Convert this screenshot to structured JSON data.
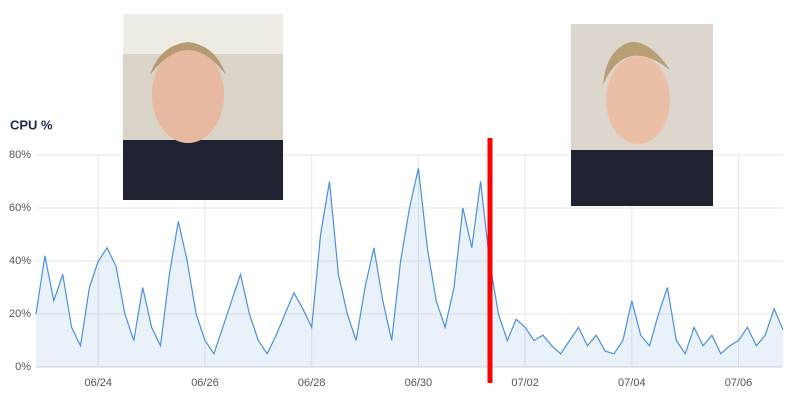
{
  "chart_data": {
    "type": "line",
    "title": "CPU %",
    "categories": [
      null,
      null,
      null,
      null,
      null,
      null,
      null,
      "06/24",
      null,
      null,
      null,
      null,
      null,
      null,
      null,
      null,
      null,
      null,
      null,
      "06/26",
      null,
      null,
      null,
      null,
      null,
      null,
      null,
      null,
      null,
      null,
      null,
      "06/28",
      null,
      null,
      null,
      null,
      null,
      null,
      null,
      null,
      null,
      null,
      null,
      "06/30",
      null,
      null,
      null,
      null,
      null,
      null,
      null,
      null,
      null,
      null,
      null,
      "07/02",
      null,
      null,
      null,
      null,
      null,
      null,
      null,
      null,
      null,
      null,
      null,
      "07/04",
      null,
      null,
      null,
      null,
      null,
      null,
      null,
      null,
      null,
      null,
      null,
      "07/06",
      null,
      null,
      null,
      null,
      null
    ],
    "values": [
      20,
      42,
      25,
      35,
      15,
      8,
      30,
      40,
      45,
      38,
      20,
      10,
      30,
      15,
      8,
      35,
      55,
      40,
      20,
      10,
      5,
      15,
      25,
      35,
      20,
      10,
      5,
      12,
      20,
      28,
      22,
      15,
      50,
      70,
      35,
      20,
      10,
      30,
      45,
      25,
      10,
      40,
      60,
      75,
      45,
      25,
      15,
      30,
      60,
      45,
      70,
      40,
      20,
      10,
      18,
      15,
      10,
      12,
      8,
      5,
      10,
      15,
      8,
      12,
      6,
      5,
      10,
      25,
      12,
      8,
      20,
      30,
      10,
      5,
      15,
      8,
      12,
      5,
      8,
      10,
      15,
      8,
      12,
      22,
      14
    ],
    "color": "#4a90e2",
    "ylim": [
      0,
      80
    ],
    "yticks": [
      {
        "value": 0,
        "label": "0%"
      },
      {
        "value": 20,
        "label": "20%"
      },
      {
        "value": 40,
        "label": "40%"
      },
      {
        "value": 60,
        "label": "60%"
      },
      {
        "value": 80,
        "label": "80%"
      }
    ],
    "grid": true
  }
}
